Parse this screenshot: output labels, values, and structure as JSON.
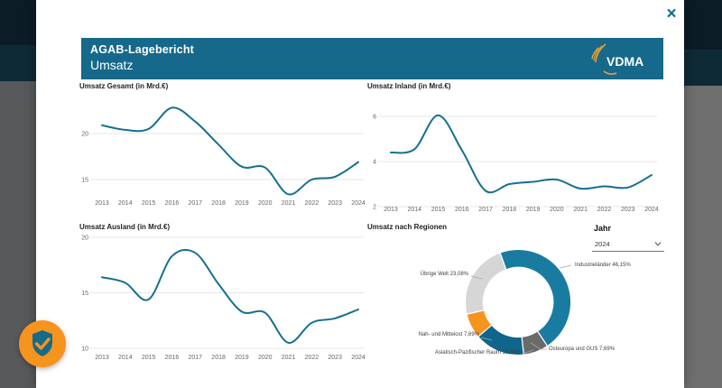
{
  "header": {
    "title": "AGAB-Lagebericht",
    "subtitle": "Umsatz",
    "logo_text": "VDMA"
  },
  "overlay": {
    "close_icon": "×"
  },
  "filter": {
    "label": "Jahr",
    "value": "2024"
  },
  "colors": {
    "header_teal": "#16698A",
    "line_teal": "#15708F",
    "orange": "#F7941E",
    "gridline": "#E7E7E7",
    "axis_text": "#666666"
  },
  "chart_data": [
    {
      "id": "gesamt",
      "type": "line",
      "title": "Umsatz Gesamt (in Mrd.€)",
      "categories": [
        "2013",
        "2014",
        "2015",
        "2016",
        "2017",
        "2018",
        "2019",
        "2020",
        "2021",
        "2022",
        "2023",
        "2024"
      ],
      "values": [
        20.9,
        20.4,
        20.5,
        22.8,
        21.3,
        18.8,
        16.4,
        16.3,
        13.4,
        15.0,
        15.3,
        16.9
      ],
      "yticks": [
        15,
        20
      ],
      "ylim": [
        13.1,
        23.8
      ],
      "grid": true,
      "color": "#15708F"
    },
    {
      "id": "inland",
      "type": "line",
      "title": "Umsatz Inland (in Mrd.€)",
      "categories": [
        "2013",
        "2014",
        "2015",
        "2016",
        "2017",
        "2018",
        "2019",
        "2020",
        "2021",
        "2022",
        "2023",
        "2024"
      ],
      "values": [
        4.4,
        4.55,
        6.05,
        4.5,
        2.7,
        3.0,
        3.1,
        3.2,
        2.8,
        2.9,
        2.85,
        3.4
      ],
      "yticks": [
        2,
        4,
        6
      ],
      "ylim": [
        2.0,
        6.7
      ],
      "grid": true,
      "color": "#15708F"
    },
    {
      "id": "ausland",
      "type": "line",
      "title": "Umsatz Ausland (in Mrd.€)",
      "categories": [
        "2013",
        "2014",
        "2015",
        "2016",
        "2017",
        "2018",
        "2019",
        "2020",
        "2021",
        "2022",
        "2023",
        "2024"
      ],
      "values": [
        16.4,
        15.9,
        14.4,
        18.3,
        18.6,
        15.8,
        13.3,
        13.2,
        10.5,
        12.3,
        12.7,
        13.5
      ],
      "yticks": [
        10,
        15,
        20
      ],
      "ylim": [
        9.8,
        20.3
      ],
      "grid": true,
      "color": "#15708F"
    },
    {
      "id": "regionen",
      "type": "donut",
      "title": "Umsatz nach Regionen",
      "start_angle": -20,
      "slices": [
        {
          "label": "Industrieländer",
          "pct": 46.15,
          "pct_label": "46,15%",
          "color": "#1A7BA0"
        },
        {
          "label": "Osteuropa und GUS",
          "pct": 7.69,
          "pct_label": "7,69%",
          "color": "#6A6A6A"
        },
        {
          "label": "Asiatisch-Pazifischer Raum",
          "pct": 15.38,
          "pct_label": "15,38%",
          "color": "#0F668A"
        },
        {
          "label": "Nah- und Mittelost",
          "pct": 7.69,
          "pct_label": "7,69%",
          "color": "#F7941E"
        },
        {
          "label": "Übrige Welt",
          "pct": 23.08,
          "pct_label": "23,08%",
          "color": "#D6D6D6"
        }
      ]
    }
  ]
}
